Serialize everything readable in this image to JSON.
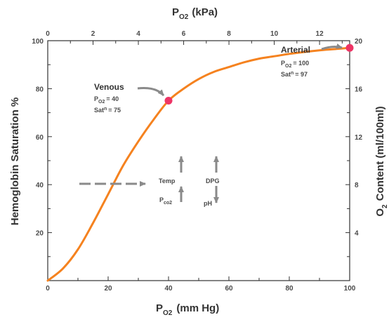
{
  "chart_data": {
    "type": "line",
    "x_axis_bottom": {
      "label_main": "P",
      "label_sub": "O2",
      "label_unit": "(mm Hg)",
      "range": [
        0,
        100
      ],
      "ticks": [
        "0",
        "20",
        "40",
        "60",
        "80",
        "100"
      ]
    },
    "x_axis_top": {
      "label_main": "P",
      "label_sub": "O2",
      "label_unit": "(kPa)",
      "range": [
        0,
        13.33
      ],
      "ticks": [
        "0",
        "2",
        "4",
        "6",
        "8",
        "10",
        "12"
      ]
    },
    "y_axis_left": {
      "label": "Hemoglobin Saturation %",
      "range": [
        0,
        100
      ],
      "ticks": [
        "20",
        "40",
        "60",
        "80",
        "100"
      ]
    },
    "y_axis_right": {
      "label_main": "O",
      "label_sub": "2",
      "label_unit": "Content (ml/100ml)",
      "range": [
        0,
        20
      ],
      "ticks": [
        "4",
        "8",
        "12",
        "16",
        "20"
      ]
    },
    "series": [
      {
        "color": "#f5821f",
        "x": [
          0,
          5,
          10,
          15,
          20,
          25,
          30,
          35,
          40,
          45,
          50,
          55,
          60,
          65,
          70,
          75,
          80,
          85,
          90,
          95,
          100
        ],
        "y": [
          0,
          5,
          13,
          24,
          36,
          48,
          58,
          67,
          75,
          80,
          84,
          87,
          89,
          91,
          92.5,
          93.5,
          94.5,
          95.3,
          96,
          96.5,
          97
        ]
      }
    ],
    "points": [
      {
        "name": "venous-point",
        "x": 40,
        "y": 75,
        "color": "#ee3465"
      },
      {
        "name": "arterial-point",
        "x": 100,
        "y": 97,
        "color": "#ee3465"
      }
    ],
    "annotations": {
      "venous": {
        "title": "Venous",
        "line1_main": "P",
        "line1_sub": "O2",
        "line1_value": "= 40",
        "line2_main": "Sat",
        "line2_sup": "n",
        "line2_value": "= 75"
      },
      "arterial": {
        "title": "Arterial",
        "line1_main": "P",
        "line1_sub": "O2",
        "line1_value": "= 100",
        "line2_main": "Sat",
        "line2_sup": "n",
        "line2_value": "= 97"
      }
    },
    "factors": {
      "temp": "Temp",
      "dpg": "DPG",
      "pco2_main": "P",
      "pco2_sub": "co2",
      "ph": "pH"
    },
    "colors": {
      "curve": "#f5821f",
      "points": "#ee3465",
      "axes": "#333333",
      "arrows": "#8a8a8a"
    }
  }
}
